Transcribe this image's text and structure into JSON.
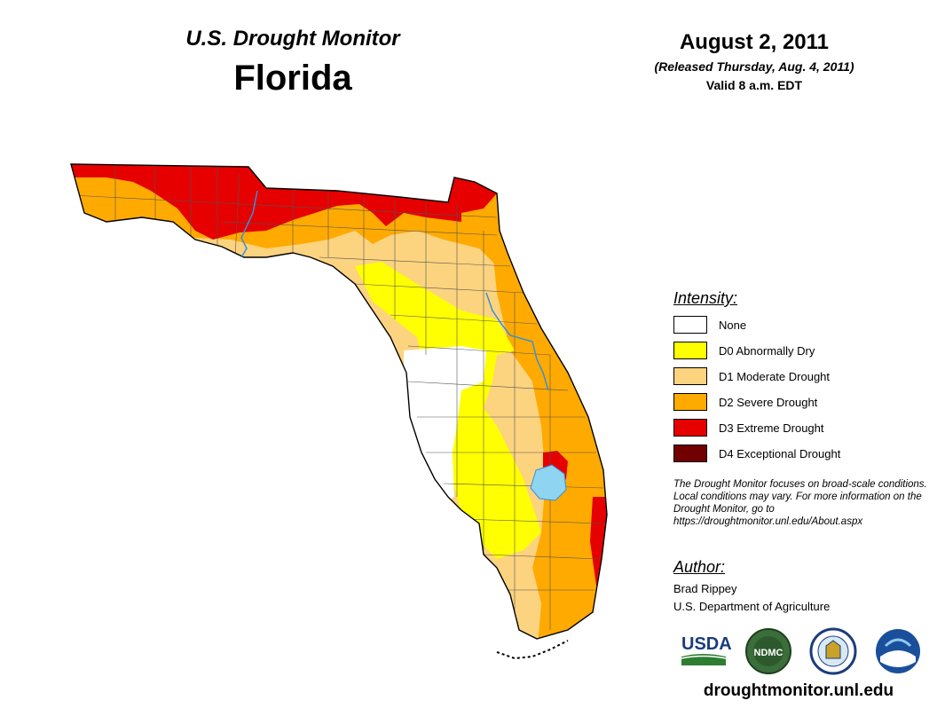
{
  "header": {
    "monitor_name": "U.S. Drought Monitor",
    "state": "Florida",
    "date": "August 2, 2011",
    "released": "(Released Thursday, Aug. 4, 2011)",
    "valid": "Valid 8 a.m. EDT"
  },
  "legend": {
    "title": "Intensity:",
    "items": [
      {
        "label": "None",
        "color": "#ffffff"
      },
      {
        "label": "D0 Abnormally Dry",
        "color": "#ffff00"
      },
      {
        "label": "D1 Moderate Drought",
        "color": "#fcd37f"
      },
      {
        "label": "D2 Severe Drought",
        "color": "#ffaa00"
      },
      {
        "label": "D3 Extreme Drought",
        "color": "#e60000"
      },
      {
        "label": "D4 Exceptional Drought",
        "color": "#730000"
      }
    ]
  },
  "note": "The Drought Monitor focuses on broad-scale conditions. Local conditions may vary. For more information on the Drought Monitor, go to https://droughtmonitor.unl.edu/About.aspx",
  "author": {
    "title": "Author:",
    "name": "Brad Rippey",
    "organization": "U.S. Department of Agriculture"
  },
  "logos": {
    "usda": "USDA",
    "ndmc": "NDMC",
    "items": [
      "usda-logo",
      "ndmc-logo",
      "commerce-seal",
      "noaa-logo"
    ]
  },
  "footer": {
    "url": "droughtmonitor.unl.edu"
  },
  "colors": {
    "none": "#ffffff",
    "d0": "#ffff00",
    "d1": "#fcd37f",
    "d2": "#ffaa00",
    "d3": "#e60000",
    "d4": "#730000",
    "water": "#8fd4f0",
    "river": "#3a8fd8"
  }
}
